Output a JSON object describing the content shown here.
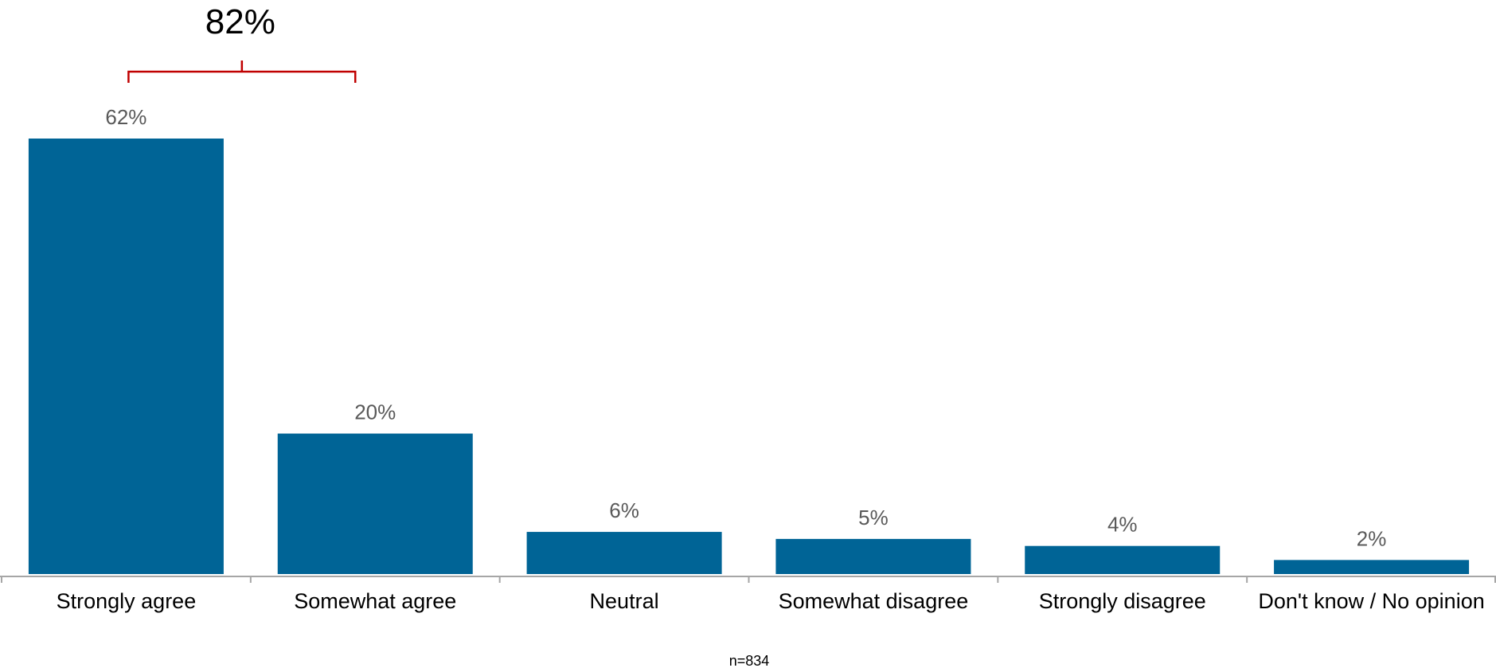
{
  "chart_data": {
    "type": "bar",
    "categories": [
      "Strongly agree",
      "Somewhat agree",
      "Neutral",
      "Somewhat disagree",
      "Strongly disagree",
      "Don't know / No opinion"
    ],
    "values": [
      62,
      20,
      6,
      5,
      4,
      2
    ],
    "value_labels": [
      "62%",
      "20%",
      "6%",
      "5%",
      "4%",
      "2%"
    ],
    "ylim": [
      0,
      62
    ],
    "grid": false,
    "legend": "none",
    "annotations": [
      {
        "label": "82%",
        "type": "bracket",
        "spans": [
          "Strongly agree",
          "Somewhat agree"
        ]
      }
    ],
    "note": "n=834"
  },
  "colors": {
    "bar": "#006496",
    "bracket": "#c00000",
    "axis": "#a6a6a6",
    "value_label": "#595959"
  }
}
